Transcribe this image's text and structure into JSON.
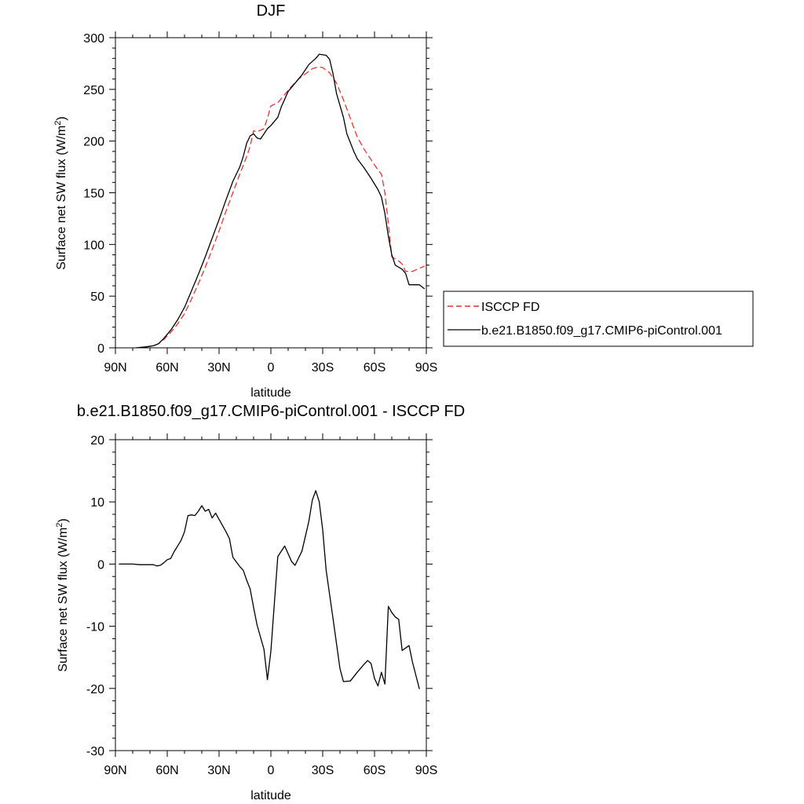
{
  "chart_data": [
    {
      "type": "line",
      "title": "DJF",
      "xlabel": "latitude",
      "ylabel_main": "Surface net SW flux (W/m",
      "ylabel_sup": "2",
      "ylabel_close": ")",
      "ylim": [
        0,
        300
      ],
      "yticks": [
        0,
        50,
        100,
        150,
        200,
        250,
        300
      ],
      "ytick_labels": [
        "0",
        "50",
        "100",
        "150",
        "200",
        "250",
        "300"
      ],
      "xlim": [
        90,
        -90
      ],
      "xticks": [
        90,
        60,
        30,
        0,
        -30,
        -60,
        -90
      ],
      "xtick_labels": [
        "90N",
        "60N",
        "30N",
        "0",
        "30S",
        "60S",
        "90S"
      ],
      "legend_position": "right",
      "series": [
        {
          "name": "ISCCP FD",
          "color": "#e8332e",
          "dash": "dashed",
          "points": [
            [
              78,
              0
            ],
            [
              72,
              1
            ],
            [
              68,
              2
            ],
            [
              65,
              4
            ],
            [
              62,
              8
            ],
            [
              58,
              15
            ],
            [
              54,
              23
            ],
            [
              50,
              33
            ],
            [
              46,
              47
            ],
            [
              42,
              62
            ],
            [
              38,
              78
            ],
            [
              34,
              95
            ],
            [
              30,
              113
            ],
            [
              26,
              132
            ],
            [
              22,
              150
            ],
            [
              18,
              168
            ],
            [
              14,
              185
            ],
            [
              12,
              195
            ],
            [
              10,
              210
            ],
            [
              8,
              209
            ],
            [
              4,
              212
            ],
            [
              2,
              222
            ],
            [
              0,
              234
            ],
            [
              -4,
              237
            ],
            [
              -8,
              245
            ],
            [
              -12,
              253
            ],
            [
              -16,
              260
            ],
            [
              -20,
              265
            ],
            [
              -24,
              270
            ],
            [
              -28,
              272
            ],
            [
              -30,
              271
            ],
            [
              -34,
              266
            ],
            [
              -38,
              256
            ],
            [
              -42,
              240
            ],
            [
              -46,
              222
            ],
            [
              -50,
              204
            ],
            [
              -54,
              192
            ],
            [
              -58,
              182
            ],
            [
              -62,
              172
            ],
            [
              -64,
              168
            ],
            [
              -66,
              150
            ],
            [
              -68,
              120
            ],
            [
              -70,
              88
            ],
            [
              -74,
              84
            ],
            [
              -76,
              81
            ],
            [
              -78,
              74
            ],
            [
              -82,
              74
            ],
            [
              -86,
              77
            ],
            [
              -89,
              79
            ]
          ]
        },
        {
          "name": "b.e21.B1850.f09_g17.CMIP6-piControl.001",
          "color": "#000000",
          "dash": "solid",
          "points": [
            [
              78,
              0
            ],
            [
              72,
              1
            ],
            [
              68,
              2
            ],
            [
              65,
              4
            ],
            [
              62,
              9
            ],
            [
              58,
              17
            ],
            [
              54,
              27
            ],
            [
              50,
              39
            ],
            [
              46,
              55
            ],
            [
              42,
              71
            ],
            [
              38,
              88
            ],
            [
              34,
              106
            ],
            [
              30,
              124
            ],
            [
              26,
              143
            ],
            [
              22,
              161
            ],
            [
              18,
              175
            ],
            [
              16,
              185
            ],
            [
              14,
              198
            ],
            [
              12,
              205
            ],
            [
              10,
              207
            ],
            [
              8,
              203
            ],
            [
              6,
              202
            ],
            [
              4,
              207
            ],
            [
              2,
              212
            ],
            [
              0,
              215
            ],
            [
              -4,
              223
            ],
            [
              -6,
              233
            ],
            [
              -10,
              248
            ],
            [
              -14,
              256
            ],
            [
              -18,
              264
            ],
            [
              -22,
              274
            ],
            [
              -26,
              280
            ],
            [
              -28,
              284
            ],
            [
              -32,
              283
            ],
            [
              -34,
              279
            ],
            [
              -36,
              265
            ],
            [
              -38,
              246
            ],
            [
              -42,
              223
            ],
            [
              -44,
              207
            ],
            [
              -48,
              190
            ],
            [
              -50,
              183
            ],
            [
              -54,
              174
            ],
            [
              -58,
              164
            ],
            [
              -62,
              153
            ],
            [
              -64,
              146
            ],
            [
              -66,
              130
            ],
            [
              -68,
              108
            ],
            [
              -70,
              90
            ],
            [
              -72,
              80
            ],
            [
              -76,
              76
            ],
            [
              -78,
              72
            ],
            [
              -80,
              61
            ],
            [
              -84,
              61
            ],
            [
              -86,
              61
            ],
            [
              -89,
              57
            ]
          ]
        }
      ]
    },
    {
      "type": "line",
      "title": "b.e21.B1850.f09_g17.CMIP6-piControl.001 - ISCCP FD",
      "xlabel": "latitude",
      "ylabel_main": "Surface net SW flux (W/m",
      "ylabel_sup": "2",
      "ylabel_close": ")",
      "ylim": [
        -30,
        20
      ],
      "yticks": [
        -30,
        -20,
        -10,
        0,
        10,
        20
      ],
      "ytick_labels": [
        "-30",
        "-20",
        "-10",
        "0",
        "10",
        "20"
      ],
      "xlim": [
        90,
        -90
      ],
      "xticks": [
        90,
        60,
        30,
        0,
        -30,
        -60,
        -90
      ],
      "xtick_labels": [
        "90N",
        "60N",
        "30N",
        "0",
        "30S",
        "60S",
        "90S"
      ],
      "series": [
        {
          "color": "#000000",
          "dash": "solid",
          "points": [
            [
              88,
              0
            ],
            [
              80,
              0
            ],
            [
              76,
              -0.1
            ],
            [
              72,
              -0.1
            ],
            [
              68,
              -0.1
            ],
            [
              66,
              -0.3
            ],
            [
              64,
              -0.2
            ],
            [
              62,
              0.2
            ],
            [
              60,
              0.7
            ],
            [
              58,
              0.9
            ],
            [
              56,
              2
            ],
            [
              52,
              3.8
            ],
            [
              50,
              5.2
            ],
            [
              48,
              7.8
            ],
            [
              46,
              7.9
            ],
            [
              44,
              7.8
            ],
            [
              42,
              8.5
            ],
            [
              40,
              9.4
            ],
            [
              38,
              8.5
            ],
            [
              36,
              8.8
            ],
            [
              34,
              7.4
            ],
            [
              32,
              8.2
            ],
            [
              30,
              7.2
            ],
            [
              28,
              6.2
            ],
            [
              26,
              5.2
            ],
            [
              24,
              4.1
            ],
            [
              22,
              1.1
            ],
            [
              18,
              -0.4
            ],
            [
              16,
              -1.0
            ],
            [
              14,
              -2.6
            ],
            [
              12,
              -4.0
            ],
            [
              10,
              -7.0
            ],
            [
              8,
              -9.8
            ],
            [
              4,
              -13.7
            ],
            [
              2,
              -18.6
            ],
            [
              0,
              -14.0
            ],
            [
              -2,
              -6.4
            ],
            [
              -4,
              1.2
            ],
            [
              -8,
              2.9
            ],
            [
              -12,
              0.4
            ],
            [
              -14,
              -0.2
            ],
            [
              -18,
              2.1
            ],
            [
              -22,
              6.9
            ],
            [
              -24,
              10.3
            ],
            [
              -26,
              11.8
            ],
            [
              -28,
              10.0
            ],
            [
              -30,
              5.5
            ],
            [
              -32,
              -1.0
            ],
            [
              -36,
              -8.8
            ],
            [
              -40,
              -16.8
            ],
            [
              -42,
              -18.9
            ],
            [
              -46,
              -18.8
            ],
            [
              -50,
              -17.4
            ],
            [
              -54,
              -16.1
            ],
            [
              -56,
              -15.5
            ],
            [
              -58,
              -16.0
            ],
            [
              -60,
              -18.4
            ],
            [
              -62,
              -19.6
            ],
            [
              -64,
              -17.4
            ],
            [
              -66,
              -19.3
            ],
            [
              -68,
              -6.8
            ],
            [
              -70,
              -7.8
            ],
            [
              -72,
              -8.5
            ],
            [
              -74,
              -8.9
            ],
            [
              -76,
              -13.9
            ],
            [
              -78,
              -13.5
            ],
            [
              -80,
              -13.1
            ],
            [
              -82,
              -15.8
            ],
            [
              -86,
              -20.1
            ]
          ]
        }
      ]
    }
  ]
}
